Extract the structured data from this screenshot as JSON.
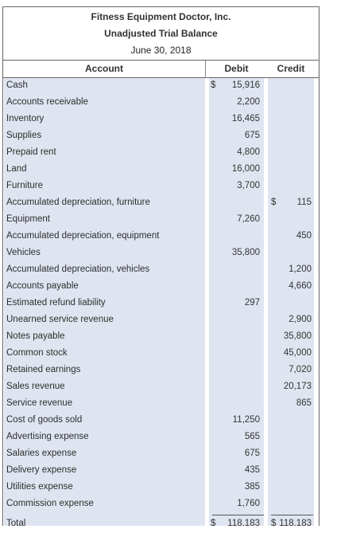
{
  "header": {
    "company": "Fitness Equipment Doctor, Inc.",
    "report": "Unadjusted Trial Balance",
    "date": "June 30, 2018"
  },
  "columns": {
    "account": "Account",
    "debit": "Debit",
    "credit": "Credit"
  },
  "currency_symbol": "$",
  "rows": [
    {
      "account": "Cash",
      "debit": "15,916",
      "credit": "",
      "debit_sign": "$",
      "credit_sign": ""
    },
    {
      "account": "Accounts receivable",
      "debit": "2,200",
      "credit": "",
      "debit_sign": "",
      "credit_sign": ""
    },
    {
      "account": "Inventory",
      "debit": "16,465",
      "credit": "",
      "debit_sign": "",
      "credit_sign": ""
    },
    {
      "account": "Supplies",
      "debit": "675",
      "credit": "",
      "debit_sign": "",
      "credit_sign": ""
    },
    {
      "account": "Prepaid rent",
      "debit": "4,800",
      "credit": "",
      "debit_sign": "",
      "credit_sign": ""
    },
    {
      "account": "Land",
      "debit": "16,000",
      "credit": "",
      "debit_sign": "",
      "credit_sign": ""
    },
    {
      "account": "Furniture",
      "debit": "3,700",
      "credit": "",
      "debit_sign": "",
      "credit_sign": ""
    },
    {
      "account": "Accumulated depreciation, furniture",
      "debit": "",
      "credit": "115",
      "debit_sign": "",
      "credit_sign": "$"
    },
    {
      "account": "Equipment",
      "debit": "7,260",
      "credit": "",
      "debit_sign": "",
      "credit_sign": ""
    },
    {
      "account": "Accumulated depreciation, equipment",
      "debit": "",
      "credit": "450",
      "debit_sign": "",
      "credit_sign": ""
    },
    {
      "account": "Vehicles",
      "debit": "35,800",
      "credit": "",
      "debit_sign": "",
      "credit_sign": ""
    },
    {
      "account": "Accumulated depreciation, vehicles",
      "debit": "",
      "credit": "1,200",
      "debit_sign": "",
      "credit_sign": ""
    },
    {
      "account": "Accounts payable",
      "debit": "",
      "credit": "4,660",
      "debit_sign": "",
      "credit_sign": ""
    },
    {
      "account": "Estimated refund liability",
      "debit": "297",
      "credit": "",
      "debit_sign": "",
      "credit_sign": ""
    },
    {
      "account": "Unearned service revenue",
      "debit": "",
      "credit": "2,900",
      "debit_sign": "",
      "credit_sign": ""
    },
    {
      "account": "Notes payable",
      "debit": "",
      "credit": "35,800",
      "debit_sign": "",
      "credit_sign": ""
    },
    {
      "account": "Common stock",
      "debit": "",
      "credit": "45,000",
      "debit_sign": "",
      "credit_sign": ""
    },
    {
      "account": "Retained earnings",
      "debit": "",
      "credit": "7,020",
      "debit_sign": "",
      "credit_sign": ""
    },
    {
      "account": "Sales revenue",
      "debit": "",
      "credit": "20,173",
      "debit_sign": "",
      "credit_sign": ""
    },
    {
      "account": "Service revenue",
      "debit": "",
      "credit": "865",
      "debit_sign": "",
      "credit_sign": ""
    },
    {
      "account": "Cost of goods sold",
      "debit": "11,250",
      "credit": "",
      "debit_sign": "",
      "credit_sign": ""
    },
    {
      "account": "Advertising expense",
      "debit": "565",
      "credit": "",
      "debit_sign": "",
      "credit_sign": ""
    },
    {
      "account": "Salaries expense",
      "debit": "675",
      "credit": "",
      "debit_sign": "",
      "credit_sign": ""
    },
    {
      "account": "Delivery expense",
      "debit": "435",
      "credit": "",
      "debit_sign": "",
      "credit_sign": ""
    },
    {
      "account": "Utilities expense",
      "debit": "385",
      "credit": "",
      "debit_sign": "",
      "credit_sign": ""
    },
    {
      "account": "Commission expense",
      "debit": "1,760",
      "credit": "",
      "debit_sign": "",
      "credit_sign": ""
    }
  ],
  "totals": {
    "label": "Total",
    "debit": "118,183",
    "credit": "118,183",
    "debit_sign": "$",
    "credit_sign": "$"
  }
}
